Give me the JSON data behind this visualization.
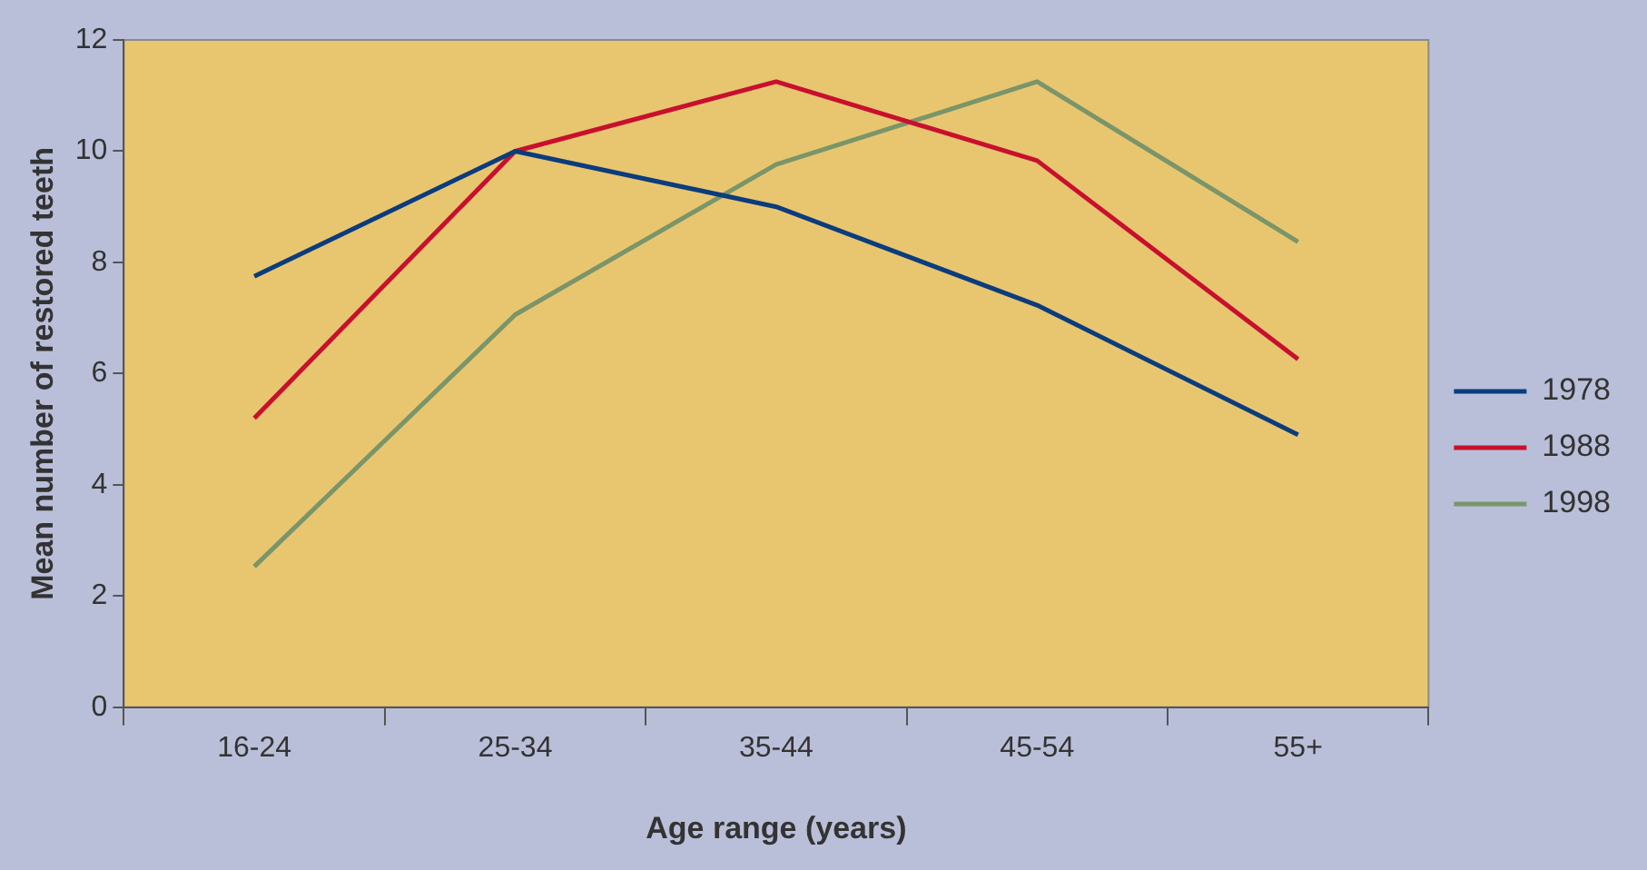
{
  "chart_data": {
    "type": "line",
    "xlabel": "Age range (years)",
    "ylabel": "Mean number of restored teeth",
    "categories": [
      "16-24",
      "25-34",
      "35-44",
      "45-54",
      "55+"
    ],
    "series": [
      {
        "name": "1978",
        "color": "#0b3c7d",
        "values": [
          7.75,
          10.0,
          9.0,
          7.23,
          4.9
        ]
      },
      {
        "name": "1988",
        "color": "#c8102e",
        "values": [
          5.2,
          10.0,
          11.25,
          9.83,
          6.26
        ]
      },
      {
        "name": "1998",
        "color": "#7a9569",
        "values": [
          2.53,
          7.06,
          9.76,
          11.25,
          8.37
        ]
      }
    ],
    "ylim": [
      0,
      12
    ],
    "yticks": [
      0,
      2,
      4,
      6,
      8,
      10,
      12
    ],
    "grid": false,
    "legend": "right",
    "marker": "none",
    "line_style": "solid"
  }
}
